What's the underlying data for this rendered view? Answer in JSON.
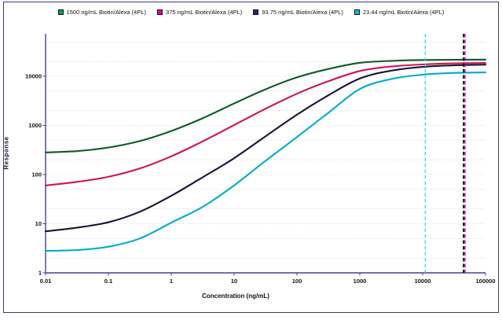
{
  "panel": {
    "border_color": "#3f3584",
    "background": "#ffffff"
  },
  "legend": {
    "items": [
      {
        "label": "1500 ng/mL Biotin/Alexa (4PL)",
        "marker_color": "#00a651"
      },
      {
        "label": "375 ng/mL Biotin/Alexa (4PL)",
        "marker_color": "#ec008c"
      },
      {
        "label": "93.75 ng/mL Biotin/Alexa (4PL)",
        "marker_color": "#28256e"
      },
      {
        "label": "23.44 ng/mL Biotin/Alexa (4PL)",
        "marker_color": "#00c4d9"
      }
    ]
  },
  "chart_data": {
    "type": "line",
    "title": "",
    "xlabel": "Concentration (ng/mL)",
    "ylabel": "Response",
    "x_scale": "log",
    "y_scale": "log",
    "xlim": [
      0.01,
      100000
    ],
    "ylim": [
      1,
      70000
    ],
    "x_ticks": [
      0.01,
      0.1,
      1,
      10,
      100,
      1000,
      10000,
      100000
    ],
    "y_ticks": [
      1,
      10,
      100,
      1000,
      10000
    ],
    "grid": "horizontal-minor-125",
    "legend_position": "top",
    "axis_color": "#4b3e8f",
    "grid_color": "#dcdce8",
    "x": [
      0.01,
      0.0316,
      0.1,
      0.316,
      1,
      3.16,
      10,
      31.6,
      100,
      316,
      1000,
      3160,
      10000,
      31600,
      100000
    ],
    "series": [
      {
        "name": "1500 ng/mL Biotin/Alexa (4PL)",
        "color": "#0b5d26",
        "values": [
          282,
          300,
          355,
          480,
          770,
          1400,
          2790,
          5430,
          9500,
          14100,
          18800,
          20600,
          21400,
          21700,
          21850
        ]
      },
      {
        "name": "375 ng/mL Biotin/Alexa (4PL)",
        "color": "#cf1458",
        "values": [
          60,
          71,
          90,
          133,
          235,
          473,
          1015,
          2180,
          4420,
          7920,
          12800,
          15800,
          17400,
          18300,
          18700
        ]
      },
      {
        "name": "93.75 ng/mL Biotin/Alexa (4PL)",
        "color": "#16153a",
        "values": [
          7,
          8.3,
          10.7,
          17.5,
          37,
          88,
          215,
          600,
          1650,
          4100,
          9000,
          13000,
          15500,
          16700,
          17180
        ]
      },
      {
        "name": "23.44 ng/mL Biotin/Alexa (4PL)",
        "color": "#00adcb",
        "values": [
          2.8,
          2.9,
          3.4,
          5.0,
          10.5,
          22,
          60,
          190,
          580,
          1800,
          5500,
          8800,
          10800,
          11700,
          11960
        ]
      }
    ],
    "reference_lines": [
      {
        "x": 11000,
        "color": "#35cfe0",
        "style": "dashed",
        "width": 1.2
      },
      {
        "x": 47500,
        "color": "#ec008c",
        "style": "dashed",
        "width": 1.1
      },
      {
        "x": 45000,
        "color": "#0c0c18",
        "style": "dashed",
        "width": 2.1
      }
    ]
  }
}
